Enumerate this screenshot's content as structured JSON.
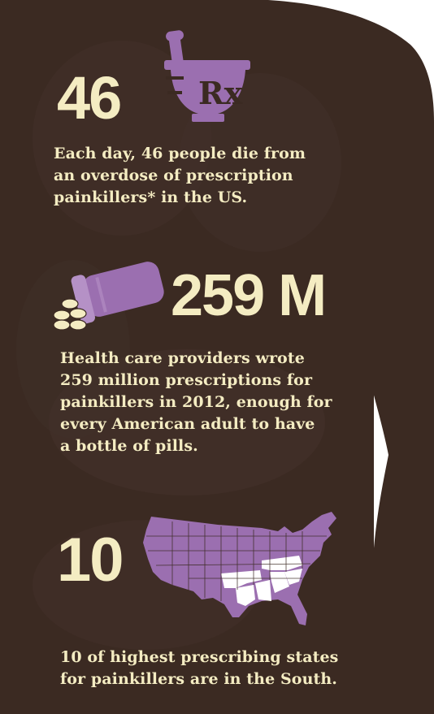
{
  "colors": {
    "background": "#3b2a22",
    "text": "#f4ecc2",
    "accent": "#9b6fb0",
    "page": "#ffffff"
  },
  "stat1": {
    "number": "46",
    "icon": "mortar-pestle-rx-icon",
    "icon_text": "Rx",
    "text": "Each day, 46 people die from\nan overdose of prescription\npainkillers* in the US."
  },
  "stat2": {
    "number": "259 M",
    "icon": "spilled-pill-bottle-icon",
    "text": "Health care providers wrote\n259 million prescriptions for\npainkillers in 2012, enough for\nevery American adult to have\na bottle of pills."
  },
  "stat3": {
    "number": "10",
    "icon": "us-map-icon",
    "text": "10 of highest prescribing states\nfor painkillers are in the South."
  }
}
